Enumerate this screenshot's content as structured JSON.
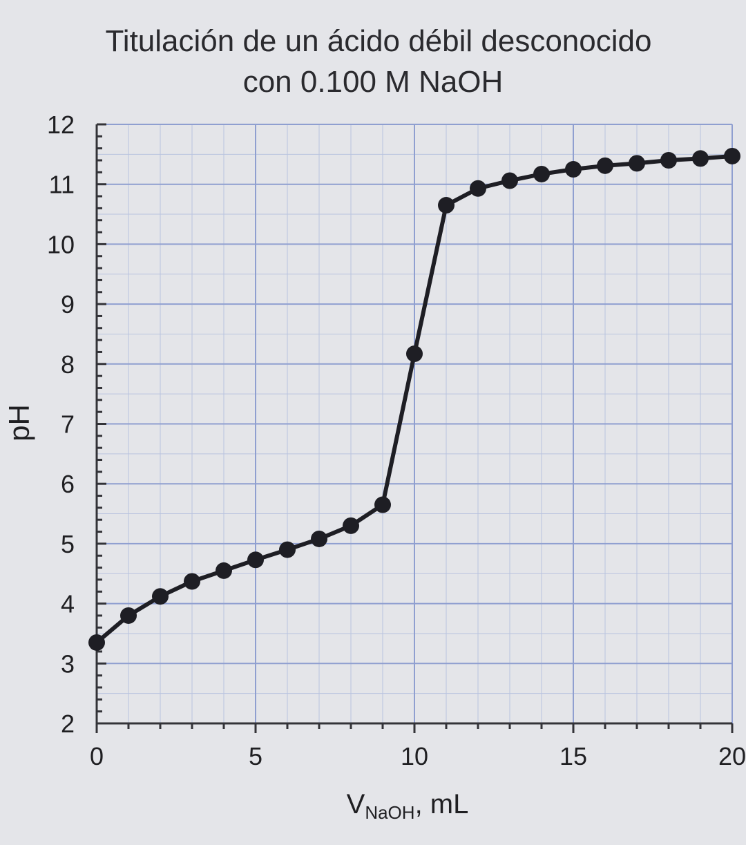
{
  "chart_data": {
    "type": "line",
    "title_lines": [
      "Titulación de un ácido débil desconocido",
      "con 0.100 M NaOH"
    ],
    "xlabel_main": "V",
    "xlabel_sub": "NaOH",
    "xlabel_unit": ", mL",
    "ylabel": "pH",
    "xlim": [
      0,
      20
    ],
    "ylim": [
      2,
      12
    ],
    "xticks": [
      0,
      5,
      10,
      15,
      20
    ],
    "yticks": [
      2,
      3,
      4,
      5,
      6,
      7,
      8,
      9,
      10,
      11,
      12
    ],
    "grid": true,
    "series": [
      {
        "x": [
          0,
          1,
          2,
          3,
          4,
          5,
          6,
          7,
          8,
          9,
          10,
          11,
          12,
          13,
          14,
          15,
          16,
          17,
          18,
          19,
          20
        ],
        "values": [
          3.35,
          3.8,
          4.12,
          4.37,
          4.55,
          4.73,
          4.9,
          5.08,
          5.3,
          5.65,
          8.17,
          10.65,
          10.93,
          11.06,
          11.17,
          11.25,
          11.31,
          11.35,
          11.4,
          11.43,
          11.47
        ]
      }
    ]
  }
}
